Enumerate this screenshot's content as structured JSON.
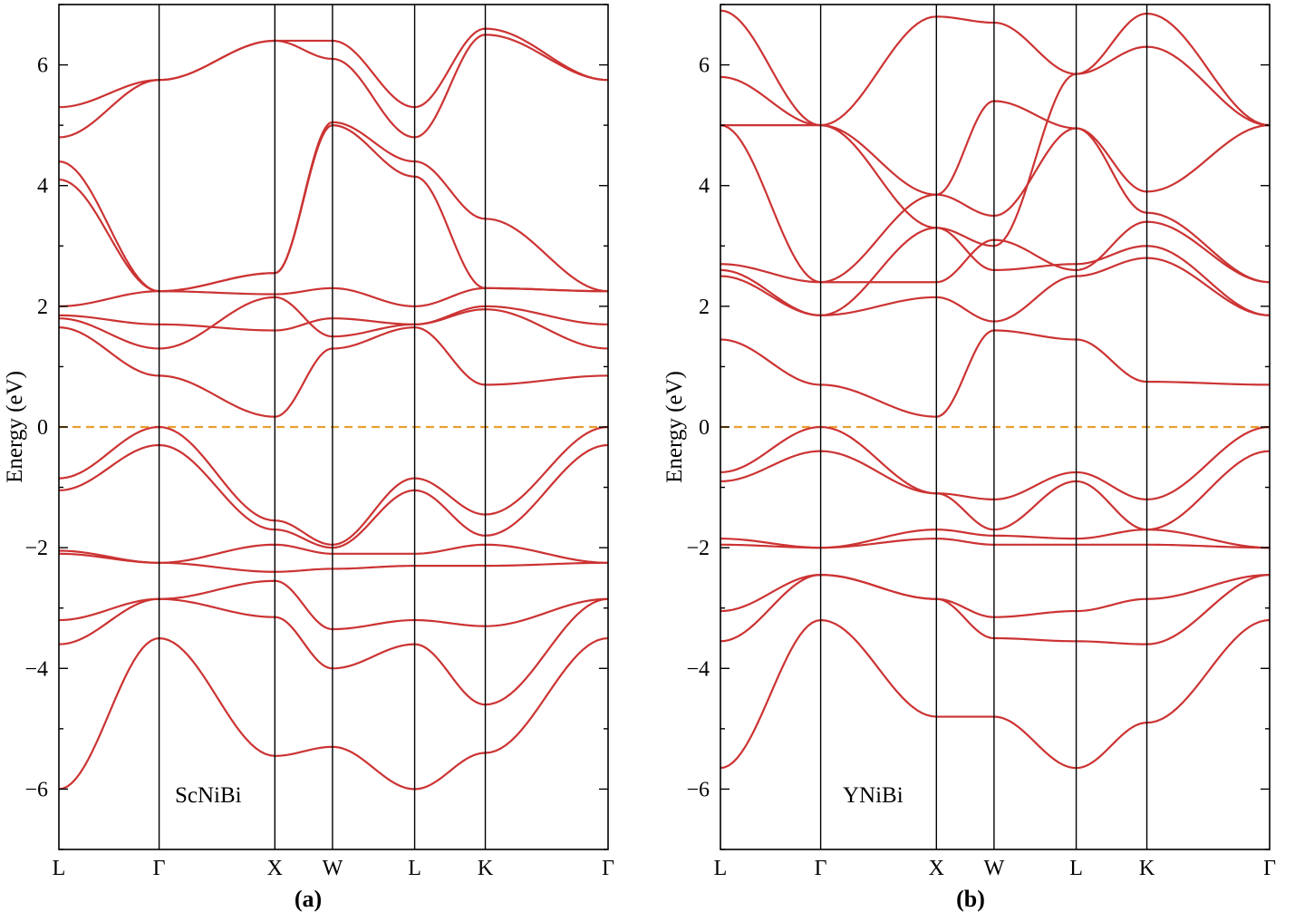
{
  "chart_data": [
    {
      "type": "line",
      "panel_label": "(a)",
      "annotation": "ScNiBi",
      "ylabel": "Energy (eV)",
      "ylim": [
        -7,
        7
      ],
      "yticks": [
        -6,
        -4,
        -2,
        0,
        2,
        4,
        6
      ],
      "ytick_labels": [
        "−6",
        "−4",
        "−2",
        "0",
        "2",
        "4",
        "6"
      ],
      "kpath": [
        {
          "label": "L",
          "x": 0
        },
        {
          "label": "Γ",
          "x": 1
        },
        {
          "label": "X",
          "x": 2.155
        },
        {
          "label": "W",
          "x": 2.73
        },
        {
          "label": "L",
          "x": 3.55
        },
        {
          "label": "K",
          "x": 4.255
        },
        {
          "label": "Γ",
          "x": 5.48
        }
      ],
      "fermi_level": 0,
      "grid": false,
      "series": [
        {
          "name": "band-1",
          "values": [
            -6.0,
            -3.5,
            -5.45,
            -5.3,
            -6.0,
            -5.4,
            -3.5
          ]
        },
        {
          "name": "band-2",
          "values": [
            -3.6,
            -2.85,
            -3.15,
            -4.0,
            -3.6,
            -4.6,
            -2.85
          ]
        },
        {
          "name": "band-3",
          "values": [
            -3.2,
            -2.85,
            -2.55,
            -3.35,
            -3.2,
            -3.3,
            -2.85
          ]
        },
        {
          "name": "band-4",
          "values": [
            -2.1,
            -2.25,
            -2.4,
            -2.35,
            -2.3,
            -2.3,
            -2.25
          ]
        },
        {
          "name": "band-5",
          "values": [
            -2.05,
            -2.25,
            -1.95,
            -2.1,
            -2.1,
            -1.95,
            -2.25
          ]
        },
        {
          "name": "band-6",
          "values": [
            -1.05,
            -0.3,
            -1.7,
            -2.0,
            -1.05,
            -1.8,
            -0.3
          ]
        },
        {
          "name": "band-7",
          "values": [
            -0.85,
            0.0,
            -1.55,
            -1.95,
            -0.85,
            -1.45,
            0.0
          ]
        },
        {
          "name": "band-8",
          "values": [
            1.65,
            0.85,
            0.17,
            1.3,
            1.65,
            0.7,
            0.85
          ]
        },
        {
          "name": "band-9",
          "values": [
            1.8,
            1.3,
            2.15,
            1.5,
            1.7,
            1.95,
            1.3
          ]
        },
        {
          "name": "band-10",
          "values": [
            1.85,
            1.7,
            1.6,
            1.8,
            1.7,
            2.0,
            1.7
          ]
        },
        {
          "name": "band-11",
          "values": [
            2.0,
            2.25,
            2.2,
            2.3,
            2.0,
            2.3,
            2.25
          ]
        },
        {
          "name": "band-12",
          "values": [
            4.1,
            2.25,
            2.55,
            5.0,
            4.15,
            2.3,
            2.25
          ]
        },
        {
          "name": "band-13",
          "values": [
            4.4,
            2.25,
            2.55,
            5.05,
            4.4,
            3.45,
            2.25
          ]
        },
        {
          "name": "band-14",
          "values": [
            4.8,
            5.75,
            6.4,
            6.1,
            4.8,
            6.5,
            5.75
          ]
        },
        {
          "name": "band-15",
          "values": [
            5.3,
            5.75,
            6.4,
            6.4,
            5.3,
            6.6,
            5.75
          ]
        }
      ]
    },
    {
      "type": "line",
      "panel_label": "(b)",
      "annotation": "YNiBi",
      "ylabel": "Energy (eV)",
      "ylim": [
        -7,
        7
      ],
      "yticks": [
        -6,
        -4,
        -2,
        0,
        2,
        4,
        6
      ],
      "ytick_labels": [
        "−6",
        "−4",
        "−2",
        "0",
        "2",
        "4",
        "6"
      ],
      "kpath": [
        {
          "label": "L",
          "x": 0
        },
        {
          "label": "Γ",
          "x": 1
        },
        {
          "label": "X",
          "x": 2.155
        },
        {
          "label": "W",
          "x": 2.73
        },
        {
          "label": "L",
          "x": 3.55
        },
        {
          "label": "K",
          "x": 4.255
        },
        {
          "label": "Γ",
          "x": 5.48
        }
      ],
      "fermi_level": 0,
      "grid": false,
      "series": [
        {
          "name": "band-1",
          "values": [
            -5.65,
            -3.2,
            -4.8,
            -4.8,
            -5.65,
            -4.9,
            -3.2
          ]
        },
        {
          "name": "band-2",
          "values": [
            -3.55,
            -2.45,
            -2.85,
            -3.5,
            -3.55,
            -3.6,
            -2.45
          ]
        },
        {
          "name": "band-3",
          "values": [
            -3.05,
            -2.45,
            -2.85,
            -3.15,
            -3.05,
            -2.85,
            -2.45
          ]
        },
        {
          "name": "band-4",
          "values": [
            -1.95,
            -2.0,
            -1.85,
            -1.95,
            -1.95,
            -1.95,
            -2.0
          ]
        },
        {
          "name": "band-5",
          "values": [
            -1.85,
            -2.0,
            -1.7,
            -1.8,
            -1.85,
            -1.7,
            -2.0
          ]
        },
        {
          "name": "band-6",
          "values": [
            -0.9,
            -0.4,
            -1.1,
            -1.7,
            -0.9,
            -1.7,
            -0.4
          ]
        },
        {
          "name": "band-7",
          "values": [
            -0.75,
            0.0,
            -1.1,
            -1.2,
            -0.75,
            -1.2,
            0.0
          ]
        },
        {
          "name": "band-8",
          "values": [
            1.45,
            0.7,
            0.17,
            1.6,
            1.45,
            0.75,
            0.7
          ]
        },
        {
          "name": "band-9",
          "values": [
            2.5,
            1.85,
            2.15,
            1.75,
            2.5,
            2.8,
            1.85
          ]
        },
        {
          "name": "band-10",
          "values": [
            2.6,
            1.85,
            3.3,
            2.6,
            2.7,
            3.0,
            1.85
          ]
        },
        {
          "name": "band-11",
          "values": [
            2.7,
            2.4,
            2.4,
            3.1,
            2.6,
            3.4,
            2.4
          ]
        },
        {
          "name": "band-12",
          "values": [
            5.0,
            2.4,
            3.85,
            3.5,
            4.95,
            3.55,
            2.4
          ]
        },
        {
          "name": "band-13",
          "values": [
            5.0,
            5.0,
            3.85,
            5.4,
            4.95,
            3.9,
            5.0
          ]
        },
        {
          "name": "band-14",
          "values": [
            5.8,
            5.0,
            3.3,
            3.0,
            5.85,
            6.3,
            5.0
          ]
        },
        {
          "name": "band-15",
          "values": [
            6.9,
            5.0,
            6.8,
            6.7,
            5.85,
            6.85,
            5.0
          ]
        }
      ]
    }
  ]
}
